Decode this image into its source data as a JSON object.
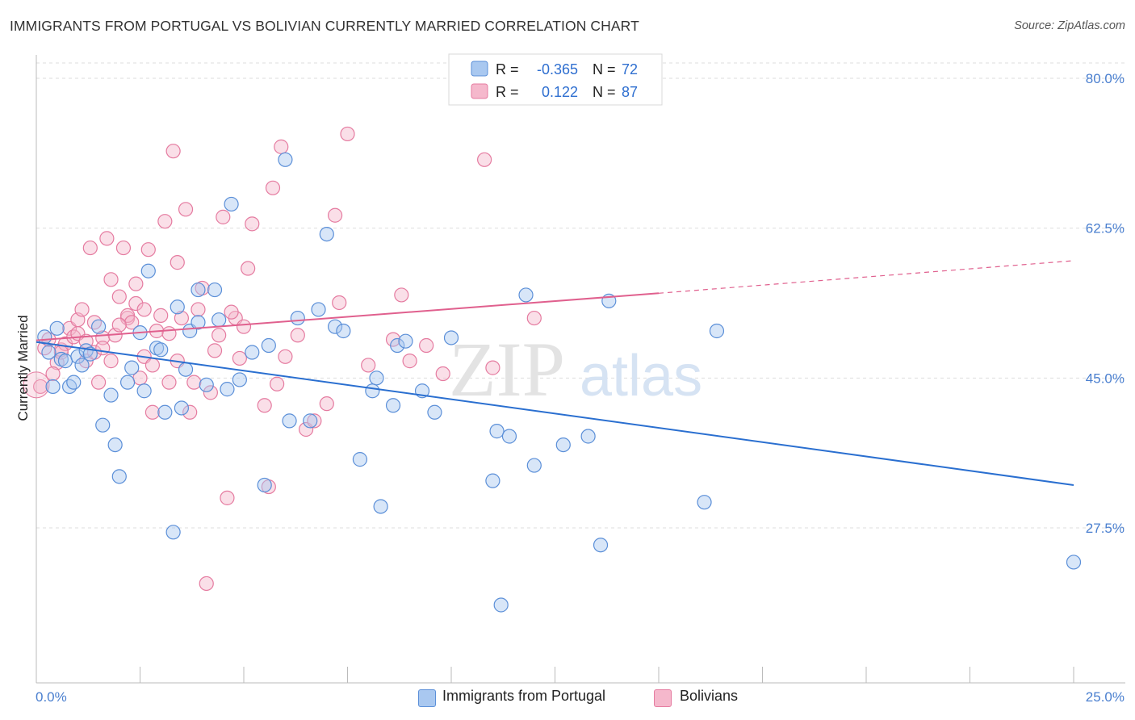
{
  "header": {
    "title": "IMMIGRANTS FROM PORTUGAL VS BOLIVIAN CURRENTLY MARRIED CORRELATION CHART",
    "source": "Source: ZipAtlas.com"
  },
  "legend_box": {
    "rows": [
      {
        "r_label": "R =",
        "r_value": "-0.365",
        "n_label": "N =",
        "n_value": "72"
      },
      {
        "r_label": "R =",
        "r_value": "0.122",
        "n_label": "N =",
        "n_value": "87"
      }
    ]
  },
  "bottom_legend": {
    "series0": "Immigrants from Portugal",
    "series1": "Bolivians"
  },
  "watermark": {
    "zip": "ZIP",
    "atlas": "atlas"
  },
  "colors": {
    "blue_fill": "#a9c8f0",
    "blue_stroke": "#5b8fd8",
    "blue_line": "#2a6fd0",
    "pink_fill": "#f5b8cc",
    "pink_stroke": "#e57ba0",
    "pink_line": "#e0608e",
    "grid": "#dddddd",
    "axis_label": "#4a7fcf"
  },
  "chart_data": {
    "type": "scatter",
    "ylabel": "Currently Married",
    "xlabel": "",
    "xlim": [
      0,
      25
    ],
    "ylim": [
      11.5,
      81
    ],
    "x_tick_labels": [
      "0.0%",
      "25.0%"
    ],
    "y_ticks": [
      27.5,
      45.0,
      62.5,
      80.0
    ],
    "y_tick_labels": [
      "27.5%",
      "45.0%",
      "62.5%",
      "80.0%"
    ],
    "grid": true,
    "series": [
      {
        "name": "Immigrants from Portugal",
        "color": "#5b8fd8",
        "trend": {
          "x0": 0,
          "y0": 49.2,
          "x1": 25,
          "y1": 32.5,
          "dashed_from": 25
        },
        "points": [
          [
            0.2,
            49.8
          ],
          [
            0.3,
            48.0
          ],
          [
            0.4,
            44.0
          ],
          [
            0.5,
            50.8
          ],
          [
            0.6,
            47.2
          ],
          [
            0.7,
            47.0
          ],
          [
            0.8,
            44.0
          ],
          [
            0.9,
            44.5
          ],
          [
            1.0,
            47.5
          ],
          [
            1.1,
            46.5
          ],
          [
            1.2,
            48.2
          ],
          [
            1.3,
            47.8
          ],
          [
            1.5,
            51.0
          ],
          [
            1.6,
            39.5
          ],
          [
            1.8,
            43.0
          ],
          [
            1.9,
            37.2
          ],
          [
            2.0,
            33.5
          ],
          [
            2.2,
            44.5
          ],
          [
            2.3,
            46.2
          ],
          [
            2.5,
            50.3
          ],
          [
            2.6,
            43.5
          ],
          [
            2.7,
            57.5
          ],
          [
            2.9,
            48.5
          ],
          [
            3.0,
            48.3
          ],
          [
            3.1,
            41.0
          ],
          [
            3.3,
            27.0
          ],
          [
            3.4,
            53.3
          ],
          [
            3.5,
            41.5
          ],
          [
            3.6,
            46.0
          ],
          [
            3.7,
            50.5
          ],
          [
            3.9,
            51.5
          ],
          [
            3.9,
            55.3
          ],
          [
            4.1,
            44.2
          ],
          [
            4.3,
            55.3
          ],
          [
            4.4,
            51.8
          ],
          [
            4.6,
            43.7
          ],
          [
            4.7,
            65.3
          ],
          [
            4.9,
            44.8
          ],
          [
            5.2,
            48.0
          ],
          [
            5.5,
            32.5
          ],
          [
            5.6,
            48.8
          ],
          [
            6.0,
            70.5
          ],
          [
            6.1,
            40.0
          ],
          [
            6.3,
            52.0
          ],
          [
            6.6,
            40.0
          ],
          [
            6.8,
            53.0
          ],
          [
            7.0,
            61.8
          ],
          [
            7.2,
            51.0
          ],
          [
            7.4,
            50.5
          ],
          [
            7.8,
            35.5
          ],
          [
            8.1,
            43.5
          ],
          [
            8.2,
            45.0
          ],
          [
            8.3,
            30.0
          ],
          [
            8.6,
            41.8
          ],
          [
            8.7,
            48.8
          ],
          [
            8.9,
            49.3
          ],
          [
            9.3,
            43.5
          ],
          [
            9.6,
            41.0
          ],
          [
            10.0,
            49.7
          ],
          [
            11.0,
            33.0
          ],
          [
            11.1,
            38.8
          ],
          [
            11.2,
            18.5
          ],
          [
            11.4,
            38.2
          ],
          [
            11.8,
            54.7
          ],
          [
            12.0,
            34.8
          ],
          [
            12.7,
            37.2
          ],
          [
            13.3,
            38.2
          ],
          [
            13.6,
            25.5
          ],
          [
            13.8,
            54.0
          ],
          [
            16.1,
            30.5
          ],
          [
            16.4,
            50.5
          ],
          [
            25.0,
            23.5
          ]
        ]
      },
      {
        "name": "Bolivians",
        "color": "#e57ba0",
        "trend": {
          "x0": 0,
          "y0": 49.4,
          "x1": 15,
          "y1": 54.9,
          "dashed_to": 25,
          "dashed_y1": 58.7
        },
        "points": [
          [
            0.1,
            44.0
          ],
          [
            0.2,
            48.5
          ],
          [
            0.3,
            49.5
          ],
          [
            0.5,
            46.8
          ],
          [
            0.6,
            48.3
          ],
          [
            0.7,
            49.0
          ],
          [
            0.8,
            50.8
          ],
          [
            0.9,
            49.8
          ],
          [
            1.0,
            51.8
          ],
          [
            1.0,
            50.2
          ],
          [
            1.1,
            53.0
          ],
          [
            1.2,
            47.0
          ],
          [
            1.3,
            60.2
          ],
          [
            1.4,
            51.5
          ],
          [
            1.4,
            48.0
          ],
          [
            1.5,
            44.5
          ],
          [
            1.6,
            49.7
          ],
          [
            1.7,
            61.3
          ],
          [
            1.8,
            47.0
          ],
          [
            1.8,
            56.5
          ],
          [
            1.9,
            50.0
          ],
          [
            2.0,
            54.5
          ],
          [
            2.1,
            60.2
          ],
          [
            2.2,
            52.0
          ],
          [
            2.2,
            52.3
          ],
          [
            2.3,
            51.5
          ],
          [
            2.4,
            56.0
          ],
          [
            2.4,
            53.7
          ],
          [
            2.5,
            45.0
          ],
          [
            2.6,
            47.5
          ],
          [
            2.7,
            60.0
          ],
          [
            2.8,
            41.0
          ],
          [
            2.9,
            50.5
          ],
          [
            3.0,
            52.3
          ],
          [
            3.1,
            63.3
          ],
          [
            3.2,
            44.5
          ],
          [
            3.3,
            71.5
          ],
          [
            3.4,
            47.0
          ],
          [
            3.4,
            58.5
          ],
          [
            3.5,
            52.0
          ],
          [
            3.6,
            64.7
          ],
          [
            3.7,
            41.0
          ],
          [
            3.8,
            44.5
          ],
          [
            3.9,
            53.0
          ],
          [
            4.0,
            55.5
          ],
          [
            4.1,
            21.0
          ],
          [
            4.2,
            43.3
          ],
          [
            4.4,
            50.0
          ],
          [
            4.5,
            63.8
          ],
          [
            4.6,
            31.0
          ],
          [
            4.8,
            52.0
          ],
          [
            4.9,
            47.3
          ],
          [
            5.1,
            57.8
          ],
          [
            5.2,
            63.0
          ],
          [
            5.5,
            41.8
          ],
          [
            5.6,
            32.3
          ],
          [
            5.7,
            67.2
          ],
          [
            5.8,
            44.3
          ],
          [
            5.9,
            72.0
          ],
          [
            6.3,
            50.0
          ],
          [
            6.5,
            39.0
          ],
          [
            6.7,
            40.0
          ],
          [
            7.0,
            42.0
          ],
          [
            7.2,
            64.0
          ],
          [
            7.5,
            73.5
          ],
          [
            8.0,
            46.5
          ],
          [
            8.6,
            49.5
          ],
          [
            8.8,
            54.7
          ],
          [
            9.0,
            47.0
          ],
          [
            9.4,
            48.8
          ],
          [
            10.8,
            70.5
          ],
          [
            11.0,
            46.2
          ],
          [
            12.0,
            52.0
          ],
          [
            0.4,
            45.5
          ],
          [
            0.6,
            48.0
          ],
          [
            1.2,
            49.3
          ],
          [
            1.6,
            48.5
          ],
          [
            2.0,
            51.2
          ],
          [
            2.6,
            53.0
          ],
          [
            2.8,
            46.5
          ],
          [
            3.2,
            50.2
          ],
          [
            4.3,
            48.2
          ],
          [
            4.7,
            52.7
          ],
          [
            5.0,
            51.0
          ],
          [
            6.0,
            47.5
          ],
          [
            7.3,
            53.8
          ],
          [
            9.8,
            45.5
          ]
        ]
      }
    ]
  }
}
